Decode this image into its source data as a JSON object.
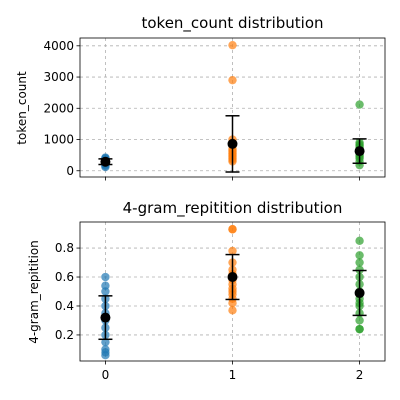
{
  "chart_data": [
    {
      "type": "scatter",
      "title": "token_count distribution",
      "xlabel": "",
      "ylabel": "token_count",
      "xlim": [
        -0.2,
        2.2
      ],
      "ylim": [
        -200,
        4250
      ],
      "yticks": [
        0,
        1000,
        2000,
        3000,
        4000
      ],
      "xticks": [
        0,
        1,
        2
      ],
      "grid": true,
      "series": [
        {
          "x": 0,
          "color": "#1f77b4",
          "points": [
            120,
            160,
            200,
            230,
            260,
            280,
            300,
            320,
            340,
            360,
            380,
            400,
            420
          ],
          "mean": 290,
          "std": 90
        },
        {
          "x": 1,
          "color": "#ff7f0e",
          "points": [
            300,
            350,
            400,
            450,
            500,
            550,
            600,
            650,
            700,
            800,
            900,
            1000,
            2900,
            4020
          ],
          "mean": 860,
          "std": 900
        },
        {
          "x": 2,
          "color": "#2ca02c",
          "points": [
            180,
            300,
            400,
            450,
            500,
            550,
            600,
            650,
            700,
            750,
            800,
            850,
            900,
            2120
          ],
          "mean": 630,
          "std": 390
        }
      ]
    },
    {
      "type": "scatter",
      "title": "4-gram_repitition distribution",
      "xlabel": "",
      "ylabel": "4-gram_repitition",
      "xlim": [
        -0.2,
        2.2
      ],
      "ylim": [
        0.02,
        0.98
      ],
      "yticks": [
        0.2,
        0.4,
        0.6,
        0.8
      ],
      "xticks": [
        0,
        1,
        2
      ],
      "grid": true,
      "series": [
        {
          "x": 0,
          "color": "#1f77b4",
          "points": [
            0.06,
            0.08,
            0.1,
            0.15,
            0.2,
            0.25,
            0.3,
            0.35,
            0.4,
            0.45,
            0.5,
            0.54,
            0.6
          ],
          "mean": 0.32,
          "std": 0.15
        },
        {
          "x": 1,
          "color": "#ff7f0e",
          "points": [
            0.37,
            0.42,
            0.45,
            0.48,
            0.5,
            0.52,
            0.55,
            0.58,
            0.6,
            0.62,
            0.65,
            0.7,
            0.78,
            0.93,
            0.93
          ],
          "mean": 0.6,
          "std": 0.155
        },
        {
          "x": 2,
          "color": "#2ca02c",
          "points": [
            0.24,
            0.24,
            0.3,
            0.35,
            0.4,
            0.42,
            0.45,
            0.48,
            0.5,
            0.55,
            0.6,
            0.65,
            0.7,
            0.75,
            0.85
          ],
          "mean": 0.49,
          "std": 0.155
        }
      ]
    }
  ]
}
